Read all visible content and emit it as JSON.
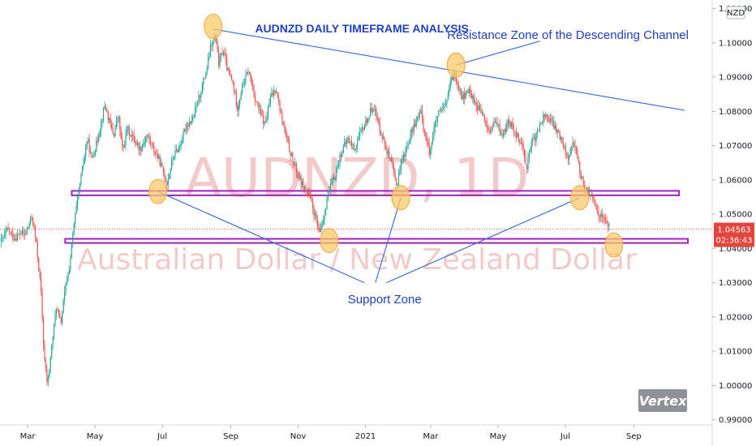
{
  "chart_data": {
    "type": "candlestick",
    "symbol": "AUDNZD",
    "timeframe": "1D",
    "title": "AUDNZD DAILY TIMEFRAME ANALYSIS",
    "watermark": {
      "symbol": "AUDNZD, 1D",
      "description": "Australian Dollar / New Zealand Dollar"
    },
    "currency_label": "NZD",
    "ylim": [
      0.9885,
      1.1125
    ],
    "y_ticks": [
      "1.11000",
      "1.10000",
      "1.09000",
      "1.08000",
      "1.07000",
      "1.06000",
      "1.05000",
      "1.04000",
      "1.03000",
      "1.02000",
      "1.01000",
      "1.00000",
      "0.99000"
    ],
    "x_ticks": [
      {
        "label": "Mar",
        "day": 0
      },
      {
        "label": "May",
        "day": 61
      },
      {
        "label": "Jul",
        "day": 122
      },
      {
        "label": "Sep",
        "day": 184
      },
      {
        "label": "Nov",
        "day": 245
      },
      {
        "label": "2021",
        "day": 306
      },
      {
        "label": "Mar",
        "day": 365
      },
      {
        "label": "May",
        "day": 426
      },
      {
        "label": "Jul",
        "day": 487
      },
      {
        "label": "Sep",
        "day": 549
      }
    ],
    "x_range_days": [
      -25,
      620
    ],
    "last_price": {
      "value": "1.04563",
      "countdown": "02:36:43",
      "y": 1.04563
    },
    "price_path": [
      [
        -24,
        1.042
      ],
      [
        -18,
        1.0455
      ],
      [
        -12,
        1.043
      ],
      [
        -6,
        1.0445
      ],
      [
        -2,
        1.044
      ],
      [
        4,
        1.0495
      ],
      [
        8,
        1.041
      ],
      [
        12,
        1.028
      ],
      [
        15,
        1.008
      ],
      [
        18,
        1.0
      ],
      [
        22,
        1.012
      ],
      [
        26,
        1.023
      ],
      [
        30,
        1.018
      ],
      [
        34,
        1.028
      ],
      [
        38,
        1.035
      ],
      [
        42,
        1.047
      ],
      [
        46,
        1.056
      ],
      [
        50,
        1.064
      ],
      [
        54,
        1.072
      ],
      [
        58,
        1.066
      ],
      [
        62,
        1.07
      ],
      [
        66,
        1.076
      ],
      [
        70,
        1.082
      ],
      [
        74,
        1.077
      ],
      [
        78,
        1.073
      ],
      [
        82,
        1.079
      ],
      [
        86,
        1.068
      ],
      [
        90,
        1.075
      ],
      [
        96,
        1.072
      ],
      [
        102,
        1.069
      ],
      [
        108,
        1.073
      ],
      [
        114,
        1.069
      ],
      [
        120,
        1.065
      ],
      [
        126,
        1.059
      ],
      [
        132,
        1.067
      ],
      [
        138,
        1.07
      ],
      [
        144,
        1.076
      ],
      [
        150,
        1.078
      ],
      [
        156,
        1.085
      ],
      [
        162,
        1.092
      ],
      [
        166,
        1.099
      ],
      [
        170,
        1.102
      ],
      [
        173,
        1.094
      ],
      [
        177,
        1.098
      ],
      [
        181,
        1.092
      ],
      [
        186,
        1.088
      ],
      [
        190,
        1.081
      ],
      [
        195,
        1.088
      ],
      [
        200,
        1.092
      ],
      [
        205,
        1.085
      ],
      [
        210,
        1.08
      ],
      [
        215,
        1.076
      ],
      [
        220,
        1.084
      ],
      [
        225,
        1.087
      ],
      [
        230,
        1.078
      ],
      [
        236,
        1.07
      ],
      [
        242,
        1.064
      ],
      [
        248,
        1.059
      ],
      [
        254,
        1.056
      ],
      [
        260,
        1.05
      ],
      [
        264,
        1.044
      ],
      [
        268,
        1.049
      ],
      [
        272,
        1.056
      ],
      [
        278,
        1.061
      ],
      [
        284,
        1.068
      ],
      [
        290,
        1.072
      ],
      [
        296,
        1.069
      ],
      [
        302,
        1.074
      ],
      [
        308,
        1.078
      ],
      [
        313,
        1.082
      ],
      [
        318,
        1.076
      ],
      [
        324,
        1.07
      ],
      [
        330,
        1.064
      ],
      [
        334,
        1.058
      ],
      [
        338,
        1.065
      ],
      [
        344,
        1.07
      ],
      [
        350,
        1.076
      ],
      [
        356,
        1.08
      ],
      [
        360,
        1.073
      ],
      [
        364,
        1.068
      ],
      [
        368,
        1.075
      ],
      [
        372,
        1.079
      ],
      [
        378,
        1.081
      ],
      [
        382,
        1.087
      ],
      [
        386,
        1.091
      ],
      [
        390,
        1.088
      ],
      [
        394,
        1.084
      ],
      [
        400,
        1.086
      ],
      [
        406,
        1.082
      ],
      [
        412,
        1.079
      ],
      [
        418,
        1.074
      ],
      [
        424,
        1.077
      ],
      [
        430,
        1.073
      ],
      [
        436,
        1.077
      ],
      [
        442,
        1.074
      ],
      [
        448,
        1.07
      ],
      [
        452,
        1.064
      ],
      [
        456,
        1.07
      ],
      [
        462,
        1.074
      ],
      [
        468,
        1.079
      ],
      [
        474,
        1.077
      ],
      [
        480,
        1.074
      ],
      [
        486,
        1.07
      ],
      [
        490,
        1.066
      ],
      [
        494,
        1.072
      ],
      [
        498,
        1.066
      ],
      [
        502,
        1.06
      ],
      [
        506,
        1.057
      ],
      [
        510,
        1.056
      ],
      [
        514,
        1.052
      ],
      [
        518,
        1.05
      ],
      [
        522,
        1.049
      ],
      [
        527,
        1.0456
      ]
    ],
    "lines": [
      {
        "name": "resistance-trendline",
        "from": [
          168,
          1.104
        ],
        "to": [
          595,
          1.0803
        ],
        "color": "#3d6ee6"
      },
      {
        "name": "callout-support-1",
        "from": [
          118,
          1.0566
        ],
        "to": [
          305,
          1.03
        ],
        "color": "#3d6ee6"
      },
      {
        "name": "callout-support-2",
        "from": [
          338,
          1.0548
        ],
        "to": [
          315,
          1.03
        ],
        "color": "#3d6ee6"
      },
      {
        "name": "callout-support-3",
        "from": [
          500,
          1.0548
        ],
        "to": [
          325,
          1.03
        ],
        "color": "#3d6ee6"
      },
      {
        "name": "callout-resistance",
        "from": [
          388,
          1.0935
        ],
        "to": [
          464,
          1.1005
        ],
        "color": "#3d6ee6"
      }
    ],
    "zones": [
      {
        "name": "upper-support-zone",
        "x_start": 40,
        "x_end": 590,
        "y_top": 1.0568,
        "y_bottom": 1.0555,
        "color": "#a020c0"
      },
      {
        "name": "lower-support-zone",
        "x_start": 34,
        "x_end": 598,
        "y_top": 1.0428,
        "y_bottom": 1.0416,
        "color": "#a020c0"
      }
    ],
    "last_price_line": {
      "y": 1.04563,
      "color": "#e25c4a"
    },
    "highlight_circles": [
      {
        "x": 168,
        "y": 1.1048
      },
      {
        "x": 118,
        "y": 1.0566
      },
      {
        "x": 273,
        "y": 1.0423
      },
      {
        "x": 338,
        "y": 1.0548
      },
      {
        "x": 388,
        "y": 1.0935
      },
      {
        "x": 500,
        "y": 1.0548
      },
      {
        "x": 531,
        "y": 1.041
      }
    ],
    "annotations": [
      {
        "text": "AUDNZD DAILY TIMEFRAME ANALYSIS",
        "x": 206,
        "y": 1.103,
        "size": 14,
        "weight": "bold"
      },
      {
        "text": "Resistance Zone of the Descending Channel",
        "x": 380,
        "y": 1.1012,
        "size": 15,
        "weight": "normal"
      },
      {
        "text": "Support Zone",
        "x": 290,
        "y": 1.024,
        "size": 15,
        "weight": "normal"
      }
    ],
    "grid": false,
    "colors": {
      "up": "#26a69a",
      "down": "#ef5350",
      "annotation": "#1f3fbf",
      "highlight_fill": "#fbc96a",
      "highlight_stroke": "#f2a640"
    }
  },
  "branding": {
    "logo_text": "Vertex"
  }
}
